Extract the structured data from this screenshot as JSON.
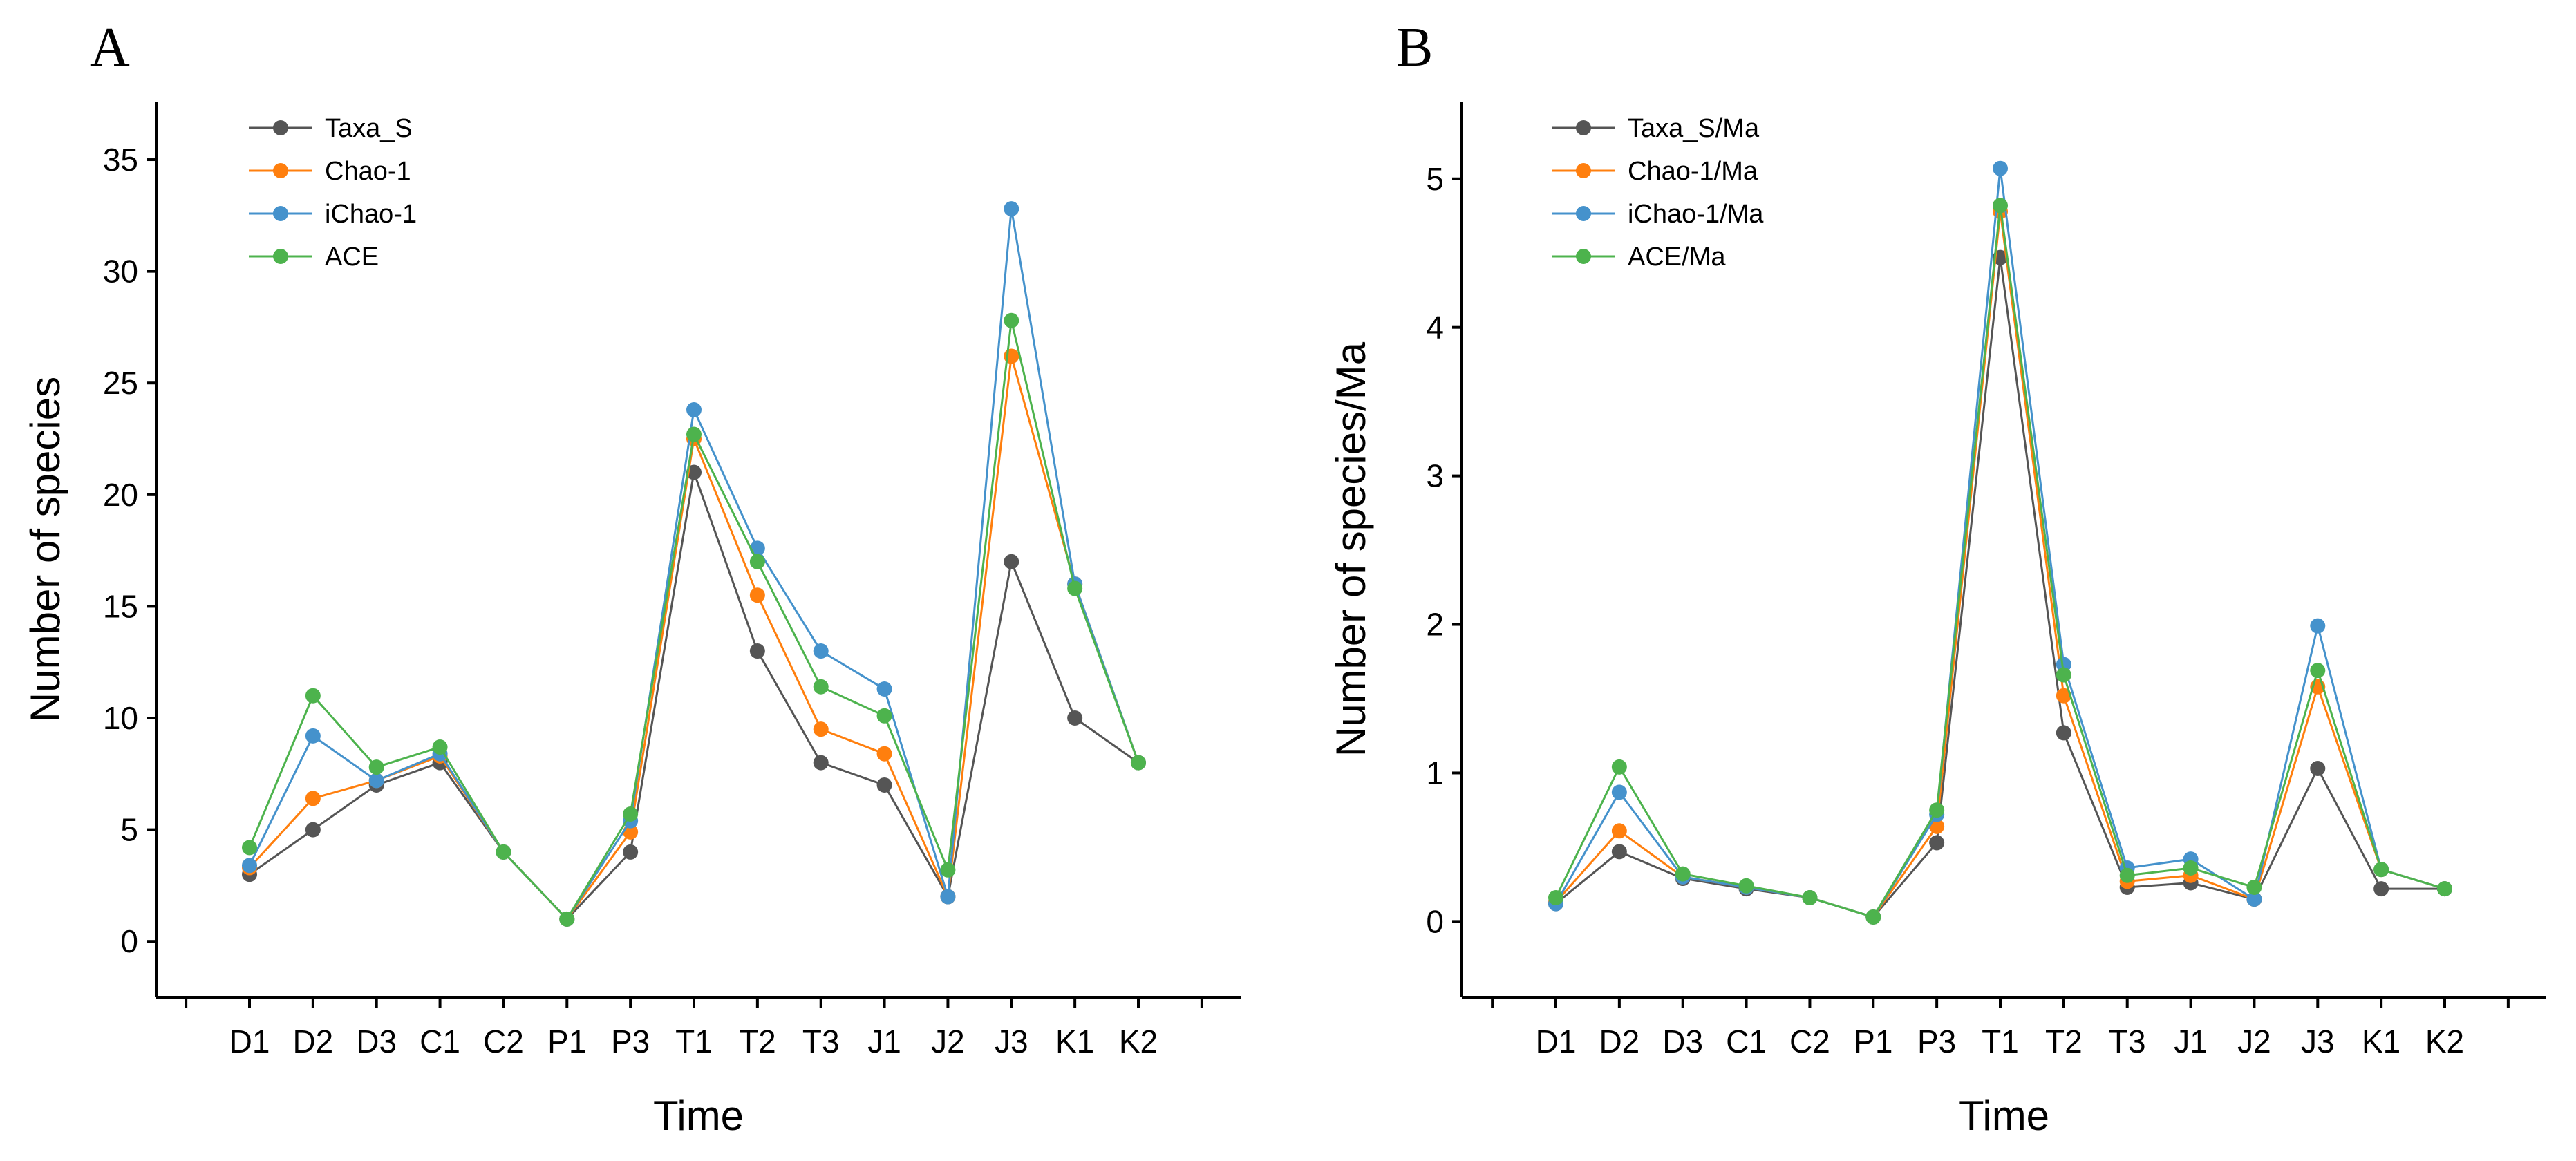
{
  "chart_data": [
    {
      "type": "line",
      "panel_label": "A",
      "xlabel": "Time",
      "ylabel": "Number of species",
      "categories": [
        "D1",
        "D2",
        "D3",
        "C1",
        "C2",
        "P1",
        "P3",
        "T1",
        "T2",
        "T3",
        "J1",
        "J2",
        "J3",
        "K1",
        "K2"
      ],
      "ylim": [
        -2.5,
        37.6
      ],
      "yticks": [
        0,
        5,
        10,
        15,
        20,
        25,
        30,
        35
      ],
      "legend_position": "top-left",
      "series": [
        {
          "name": "Taxa_S",
          "color": "#555555",
          "values": [
            3,
            5,
            7,
            8,
            4,
            1,
            4,
            21,
            13,
            8,
            7,
            2,
            17,
            10,
            8
          ]
        },
        {
          "name": "Chao-1",
          "color": "#ff7f0e",
          "values": [
            3.3,
            6.4,
            7.2,
            8.3,
            4,
            1,
            4.9,
            22.5,
            15.5,
            9.5,
            8.4,
            2,
            26.2,
            16,
            8
          ]
        },
        {
          "name": "iChao-1",
          "color": "#4592cc",
          "values": [
            3.4,
            9.2,
            7.2,
            8.4,
            4,
            1,
            5.4,
            23.8,
            17.6,
            13,
            11.3,
            2,
            32.8,
            16,
            8
          ]
        },
        {
          "name": "ACE",
          "color": "#4db34d",
          "values": [
            4.2,
            11,
            7.8,
            8.7,
            4,
            1,
            5.7,
            22.7,
            17,
            11.4,
            10.1,
            3.2,
            27.8,
            15.8,
            8
          ]
        }
      ]
    },
    {
      "type": "line",
      "panel_label": "B",
      "xlabel": "Time",
      "ylabel": "Number of species/Ma",
      "categories": [
        "D1",
        "D2",
        "D3",
        "C1",
        "C2",
        "P1",
        "P3",
        "T1",
        "T2",
        "T3",
        "J1",
        "J2",
        "J3",
        "K1",
        "K2"
      ],
      "ylim": [
        -0.51,
        5.52
      ],
      "yticks": [
        0,
        1,
        2,
        3,
        4,
        5
      ],
      "legend_position": "top-left",
      "series": [
        {
          "name": "Taxa_S/Ma",
          "color": "#555555",
          "values": [
            0.12,
            0.47,
            0.29,
            0.22,
            0.16,
            0.03,
            0.53,
            4.47,
            1.27,
            0.23,
            0.26,
            0.15,
            1.03,
            0.22,
            0.22
          ]
        },
        {
          "name": "Chao-1/Ma",
          "color": "#ff7f0e",
          "values": [
            0.13,
            0.61,
            0.3,
            0.23,
            0.16,
            0.03,
            0.64,
            4.78,
            1.52,
            0.27,
            0.31,
            0.15,
            1.58,
            0.35,
            0.22
          ]
        },
        {
          "name": "iChao-1/Ma",
          "color": "#4592cc",
          "values": [
            0.12,
            0.87,
            0.3,
            0.23,
            0.16,
            0.03,
            0.72,
            5.07,
            1.73,
            0.36,
            0.42,
            0.15,
            1.99,
            0.35,
            0.22
          ]
        },
        {
          "name": "ACE/Ma",
          "color": "#4db34d",
          "values": [
            0.16,
            1.04,
            0.32,
            0.24,
            0.16,
            0.03,
            0.75,
            4.82,
            1.66,
            0.31,
            0.36,
            0.23,
            1.69,
            0.35,
            0.22
          ]
        }
      ]
    }
  ]
}
